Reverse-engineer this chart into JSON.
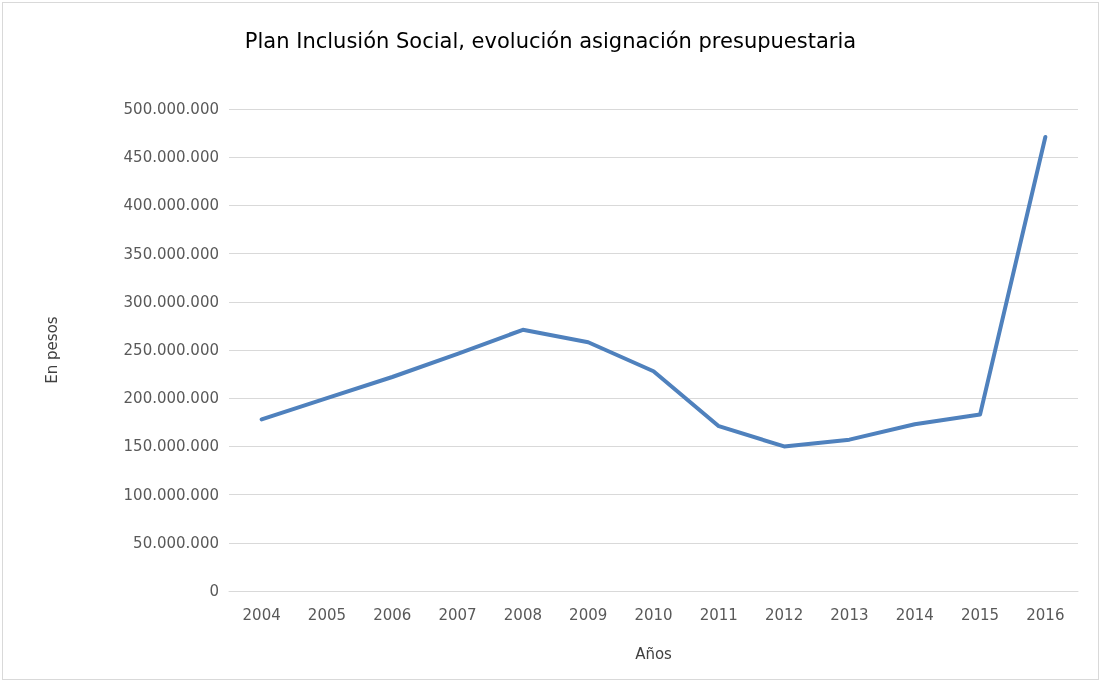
{
  "chart_data": {
    "type": "line",
    "title": "Plan Inclusión Social, evolución asignación presupuestaria",
    "xlabel": "Años",
    "ylabel": "En pesos",
    "categories": [
      "2004",
      "2005",
      "2006",
      "2007",
      "2008",
      "2009",
      "2010",
      "2011",
      "2012",
      "2013",
      "2014",
      "2015",
      "2016"
    ],
    "series": [
      {
        "color": "#4f81bd",
        "values": [
          178000000,
          200000000,
          222000000,
          246000000,
          271000000,
          258000000,
          228000000,
          171000000,
          150000000,
          157000000,
          173000000,
          183000000,
          471000000
        ]
      }
    ],
    "ylim": [
      0,
      500000000
    ],
    "yticks": [
      0,
      {
        "value": 50000000,
        "label": "50.000.000"
      },
      {
        "value": 100000000,
        "label": "100.000.000"
      },
      {
        "value": 150000000,
        "label": "150.000.000"
      },
      {
        "value": 200000000,
        "label": "200.000.000"
      },
      {
        "value": 250000000,
        "label": "250.000.000"
      },
      {
        "value": 300000000,
        "label": "300.000.000"
      },
      {
        "value": 350000000,
        "label": "350.000.000"
      },
      {
        "value": 400000000,
        "label": "400.000.000"
      },
      {
        "value": 450000000,
        "label": "450.000.000"
      },
      {
        "value": 500000000,
        "label": "500.000.000"
      }
    ],
    "grid": "y",
    "marker": "none",
    "line_style": "solid"
  }
}
